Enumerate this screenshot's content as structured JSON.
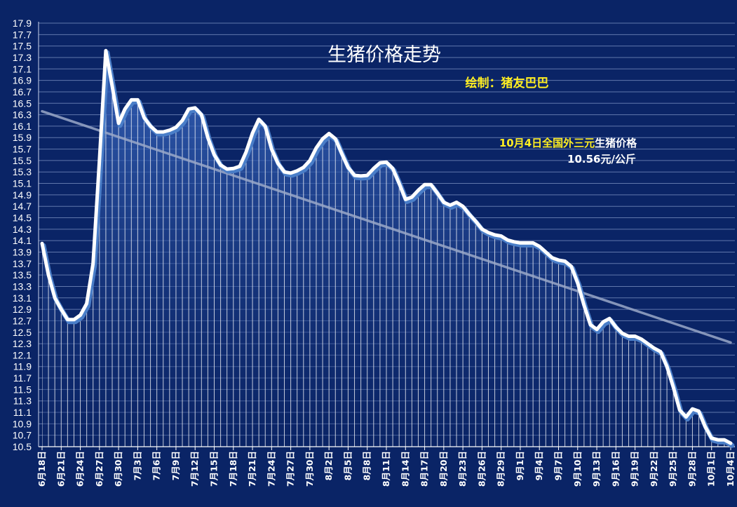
{
  "chart_data": {
    "type": "line",
    "title": "生猪价格走势",
    "credit": "绘制：猪友巴巴",
    "annotation": {
      "line1_yellow": "10月4日全国外三元",
      "line1_white": "生猪价格",
      "line2": "10.56元/公斤"
    },
    "ylim": [
      10.5,
      17.9
    ],
    "y_ticks": [
      "10.5",
      "10.7",
      "10.9",
      "11.1",
      "11.3",
      "11.5",
      "11.7",
      "11.9",
      "12.1",
      "12.3",
      "12.5",
      "12.7",
      "12.9",
      "13.1",
      "13.3",
      "13.5",
      "13.7",
      "13.9",
      "14.1",
      "14.3",
      "14.5",
      "14.7",
      "14.9",
      "15.1",
      "15.3",
      "15.5",
      "15.7",
      "15.9",
      "16.1",
      "16.3",
      "16.5",
      "16.7",
      "16.9",
      "17.1",
      "17.3",
      "17.5",
      "17.7",
      "17.9"
    ],
    "x_labels": [
      "6月18日",
      "6月21日",
      "6月24日",
      "6月27日",
      "6月30日",
      "7月3日",
      "7月6日",
      "7月9日",
      "7月12日",
      "7月15日",
      "7月18日",
      "7月21日",
      "7月24日",
      "7月27日",
      "7月30日",
      "8月2日",
      "8月5日",
      "8月8日",
      "8月11日",
      "8月14日",
      "8月17日",
      "8月20日",
      "8月23日",
      "8月26日",
      "8月29日",
      "9月1日",
      "9月4日",
      "9月7日",
      "9月10日",
      "9月13日",
      "9月16日",
      "9月19日",
      "9月22日",
      "9月25日",
      "9月28日",
      "10月1日",
      "10月4日"
    ],
    "label_every": 3,
    "series": [
      {
        "values": [
          14.05,
          13.5,
          13.1,
          12.9,
          12.72,
          12.72,
          12.8,
          13.0,
          13.7,
          15.5,
          17.42,
          16.8,
          16.15,
          16.4,
          16.56,
          16.56,
          16.25,
          16.1,
          16.0,
          16.0,
          16.03,
          16.08,
          16.2,
          16.4,
          16.42,
          16.3,
          15.9,
          15.6,
          15.42,
          15.35,
          15.36,
          15.4,
          15.65,
          15.98,
          16.22,
          16.1,
          15.7,
          15.45,
          15.3,
          15.28,
          15.32,
          15.38,
          15.5,
          15.72,
          15.88,
          15.97,
          15.88,
          15.62,
          15.38,
          15.24,
          15.23,
          15.24,
          15.36,
          15.46,
          15.47,
          15.36,
          15.1,
          14.82,
          14.86,
          14.98,
          15.08,
          15.08,
          14.93,
          14.77,
          14.72,
          14.77,
          14.7,
          14.56,
          14.44,
          14.3,
          14.24,
          14.2,
          14.18,
          14.11,
          14.08,
          14.06,
          14.06,
          14.06,
          14.0,
          13.9,
          13.8,
          13.76,
          13.74,
          13.65,
          13.36,
          12.97,
          12.63,
          12.55,
          12.68,
          12.74,
          12.59,
          12.48,
          12.43,
          12.43,
          12.38,
          12.3,
          12.22,
          12.16,
          11.9,
          11.54,
          11.14,
          11.02,
          11.16,
          11.12,
          10.85,
          10.65,
          10.62,
          10.62,
          10.56
        ]
      }
    ],
    "trendline": {
      "start": 16.36,
      "end": 12.32
    },
    "colors": {
      "background": "#0a2466",
      "line": "#ffffff",
      "line_shadow": "#4a7ec8",
      "fill_top": "#3c6cc6",
      "fill_bottom": "#0a2466",
      "trend": "#9aa8c8"
    }
  }
}
